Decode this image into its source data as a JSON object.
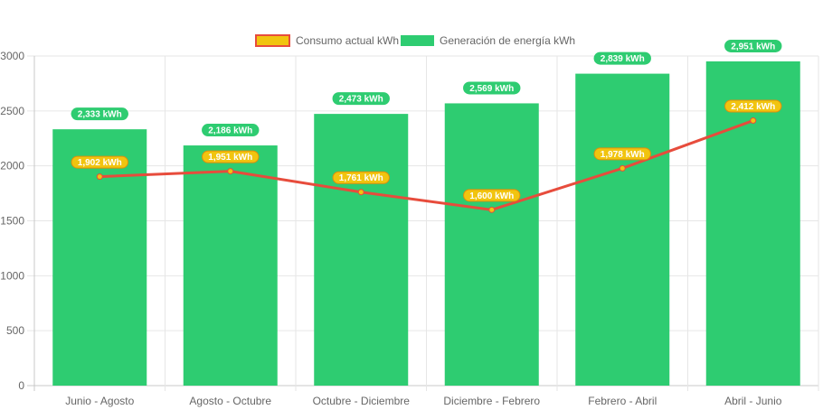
{
  "chart_data": {
    "type": "bar",
    "categories": [
      "Junio - Agosto",
      "Agosto - Octubre",
      "Octubre - Diciembre",
      "Diciembre - Febrero",
      "Febrero - Abril",
      "Abril - Junio"
    ],
    "series": [
      {
        "name": "Generación de energía kWh",
        "type": "bar",
        "values": [
          2333,
          2186,
          2473,
          2569,
          2839,
          2951
        ],
        "labels": [
          "2,333 kWh",
          "2,186 kWh",
          "2,473 kWh",
          "2,569 kWh",
          "2,839 kWh",
          "2,951 kWh"
        ],
        "color": "#2ecc71"
      },
      {
        "name": "Consumo actual kWh",
        "type": "line",
        "values": [
          1902,
          1951,
          1761,
          1600,
          1978,
          2412
        ],
        "labels": [
          "1,902 kWh",
          "1,951 kWh",
          "1,761 kWh",
          "1,600 kWh",
          "1,978 kWh",
          "2,412 kWh"
        ],
        "color": "#e74c3c",
        "point_color": "#f1c40f",
        "label_color": "#f1c40f"
      }
    ],
    "legend": [
      "Consumo actual kWh",
      "Generación de energía kWh"
    ],
    "legend_position": "top",
    "ylim": [
      0,
      3000
    ],
    "yticks": [
      "0",
      "500",
      "1000",
      "1500",
      "2000",
      "2500",
      "3000"
    ],
    "grid": true,
    "title": "",
    "xlabel": "",
    "ylabel": ""
  }
}
